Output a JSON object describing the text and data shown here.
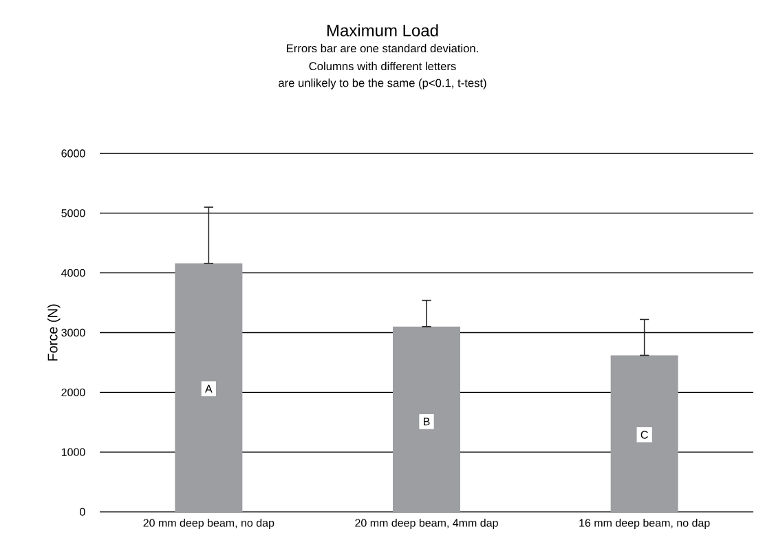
{
  "chart_data": {
    "type": "bar",
    "title": "Maximum Load",
    "subtitle": "Errors bar are one standard deviation.",
    "ylabel": "Force (N)",
    "categories": [
      "20 mm deep beam, no dap",
      "20 mm deep beam, 4mm dap",
      "16 mm deep beam, no dap"
    ],
    "values": [
      4160,
      3100,
      2620
    ],
    "errors": [
      [
        4160,
        5100
      ],
      [
        3100,
        3540
      ],
      [
        2620,
        3220
      ]
    ],
    "color": "#9d9ea2",
    "ylim": [
      0,
      6000
    ],
    "yticks": [
      0,
      1000,
      2000,
      3000,
      4000,
      5000,
      6000
    ],
    "grid": "y",
    "annotations": [
      "Columns with different letters",
      "are unlikely to be the same (p<0.1, t-test)",
      {
        "text": "A",
        "x": "20 mm deep beam, no dap",
        "y": 2060
      },
      {
        "text": "B",
        "x": "20 mm deep beam, 4mm dap",
        "y": 1510
      },
      {
        "text": "C",
        "x": "16 mm deep beam, no dap",
        "y": 1290
      }
    ]
  }
}
